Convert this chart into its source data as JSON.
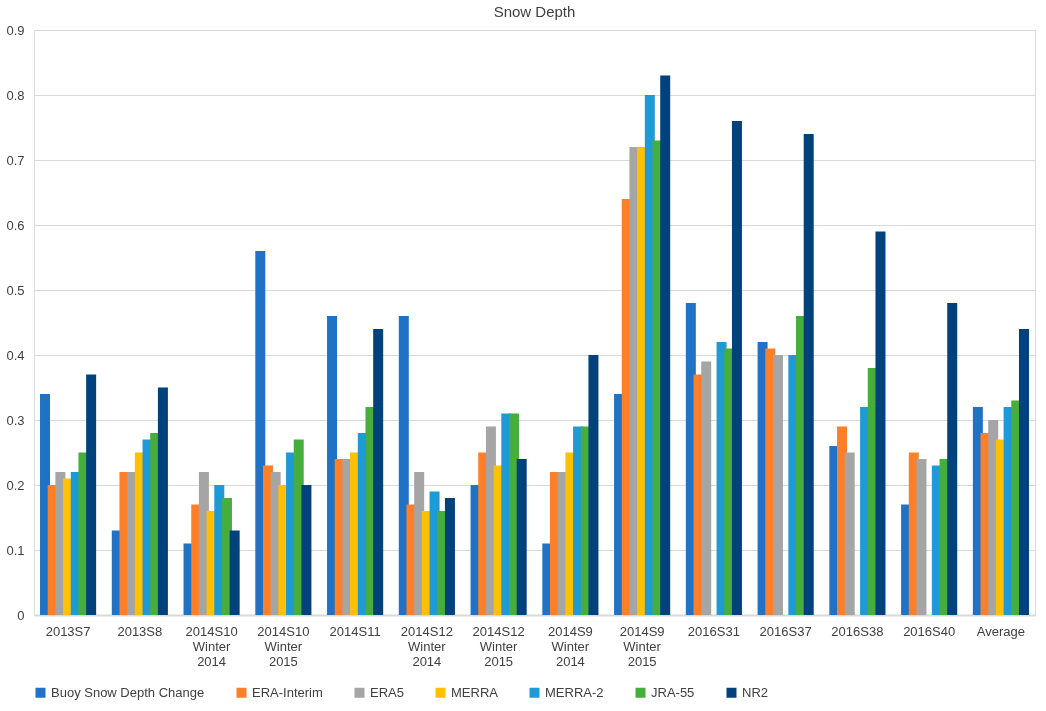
{
  "chart_data": {
    "type": "bar",
    "title": "Snow Depth",
    "categories": [
      "2013S7",
      "2013S8",
      "2014S10 Winter 2014",
      "2014S10 Winter 2015",
      "2014S11",
      "2014S12 Winter 2014",
      "2014S12 Winter 2015",
      "2014S9 Winter 2014",
      "2014S9 Winter 2015",
      "2016S31",
      "2016S37",
      "2016S38",
      "2016S40",
      "Average"
    ],
    "series": [
      {
        "name": "Buoy Snow Depth Change",
        "color": "#1f72c6",
        "values": [
          0.34,
          0.13,
          0.11,
          0.56,
          0.46,
          0.46,
          0.2,
          0.11,
          0.34,
          0.48,
          0.42,
          0.26,
          0.17,
          0.32
        ]
      },
      {
        "name": "ERA-Interim",
        "color": "#fe7f27",
        "values": [
          0.2,
          0.22,
          0.17,
          0.23,
          0.24,
          0.17,
          0.25,
          0.22,
          0.64,
          0.37,
          0.41,
          0.29,
          0.25,
          0.28
        ]
      },
      {
        "name": "ERA5",
        "color": "#a5a5a5",
        "values": [
          0.22,
          0.22,
          0.22,
          0.22,
          0.24,
          0.22,
          0.29,
          0.22,
          0.72,
          0.39,
          0.4,
          0.25,
          0.24,
          0.3
        ]
      },
      {
        "name": "MERRA",
        "color": "#ffc000",
        "values": [
          0.21,
          0.25,
          0.16,
          0.2,
          0.25,
          0.16,
          0.23,
          0.25,
          0.72,
          null,
          null,
          null,
          null,
          0.27
        ]
      },
      {
        "name": "MERRA-2",
        "color": "#1e9bd7",
        "values": [
          0.22,
          0.27,
          0.2,
          0.25,
          0.28,
          0.19,
          0.31,
          0.29,
          0.8,
          0.42,
          0.4,
          0.32,
          0.23,
          0.32
        ]
      },
      {
        "name": "JRA-55",
        "color": "#46ae3c",
        "values": [
          0.25,
          0.28,
          0.18,
          0.27,
          0.32,
          0.16,
          0.31,
          0.29,
          0.73,
          0.41,
          0.46,
          0.38,
          0.24,
          0.33
        ]
      },
      {
        "name": "NR2",
        "color": "#01427d",
        "values": [
          0.37,
          0.35,
          0.13,
          0.2,
          0.44,
          0.18,
          0.24,
          0.4,
          0.83,
          0.76,
          0.74,
          0.59,
          0.48,
          0.44
        ]
      }
    ],
    "ylim": [
      0,
      0.9
    ],
    "yticks": [
      0,
      0.1,
      0.2,
      0.3,
      0.4,
      0.5,
      0.6,
      0.7,
      0.8,
      0.9
    ],
    "grid": "y",
    "legend": "bottom"
  }
}
